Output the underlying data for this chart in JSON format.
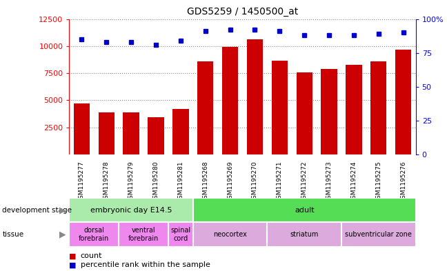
{
  "title": "GDS5259 / 1450500_at",
  "samples": [
    "GSM1195277",
    "GSM1195278",
    "GSM1195279",
    "GSM1195280",
    "GSM1195281",
    "GSM1195268",
    "GSM1195269",
    "GSM1195270",
    "GSM1195271",
    "GSM1195272",
    "GSM1195273",
    "GSM1195274",
    "GSM1195275",
    "GSM1195276"
  ],
  "counts": [
    4700,
    3900,
    3850,
    3450,
    4200,
    8600,
    9950,
    10600,
    8650,
    7600,
    7900,
    8300,
    8600,
    9700
  ],
  "percentiles": [
    85,
    83,
    83,
    81,
    84,
    91,
    92,
    92,
    91,
    88,
    88,
    88,
    89,
    90
  ],
  "ylim_left": [
    0,
    12500
  ],
  "ylim_right": [
    0,
    100
  ],
  "yticks_left": [
    2500,
    5000,
    7500,
    10000,
    12500
  ],
  "yticks_right": [
    0,
    25,
    50,
    75,
    100
  ],
  "yticklabels_left": [
    "2500",
    "5000",
    "7500",
    "10000",
    "12500"
  ],
  "yticklabels_right": [
    "0",
    "25",
    "50",
    "75",
    "100%"
  ],
  "bar_color": "#cc0000",
  "dot_color": "#0000cc",
  "dev_stage_groups": [
    {
      "label": "embryonic day E14.5",
      "start": 0,
      "end": 5,
      "color": "#aaeaaa"
    },
    {
      "label": "adult",
      "start": 5,
      "end": 14,
      "color": "#55dd55"
    }
  ],
  "tissue_groups": [
    {
      "label": "dorsal\nforebrain",
      "start": 0,
      "end": 2,
      "color": "#ee88ee"
    },
    {
      "label": "ventral\nforebrain",
      "start": 2,
      "end": 4,
      "color": "#ee88ee"
    },
    {
      "label": "spinal\ncord",
      "start": 4,
      "end": 5,
      "color": "#ee88ee"
    },
    {
      "label": "neocortex",
      "start": 5,
      "end": 8,
      "color": "#ddaadd"
    },
    {
      "label": "striatum",
      "start": 8,
      "end": 11,
      "color": "#ddaadd"
    },
    {
      "label": "subventricular zone",
      "start": 11,
      "end": 14,
      "color": "#ddaadd"
    }
  ],
  "gray_bg": "#c8c8c8",
  "legend_count_color": "#cc0000",
  "legend_percentile_color": "#0000cc",
  "background_color": "#ffffff"
}
